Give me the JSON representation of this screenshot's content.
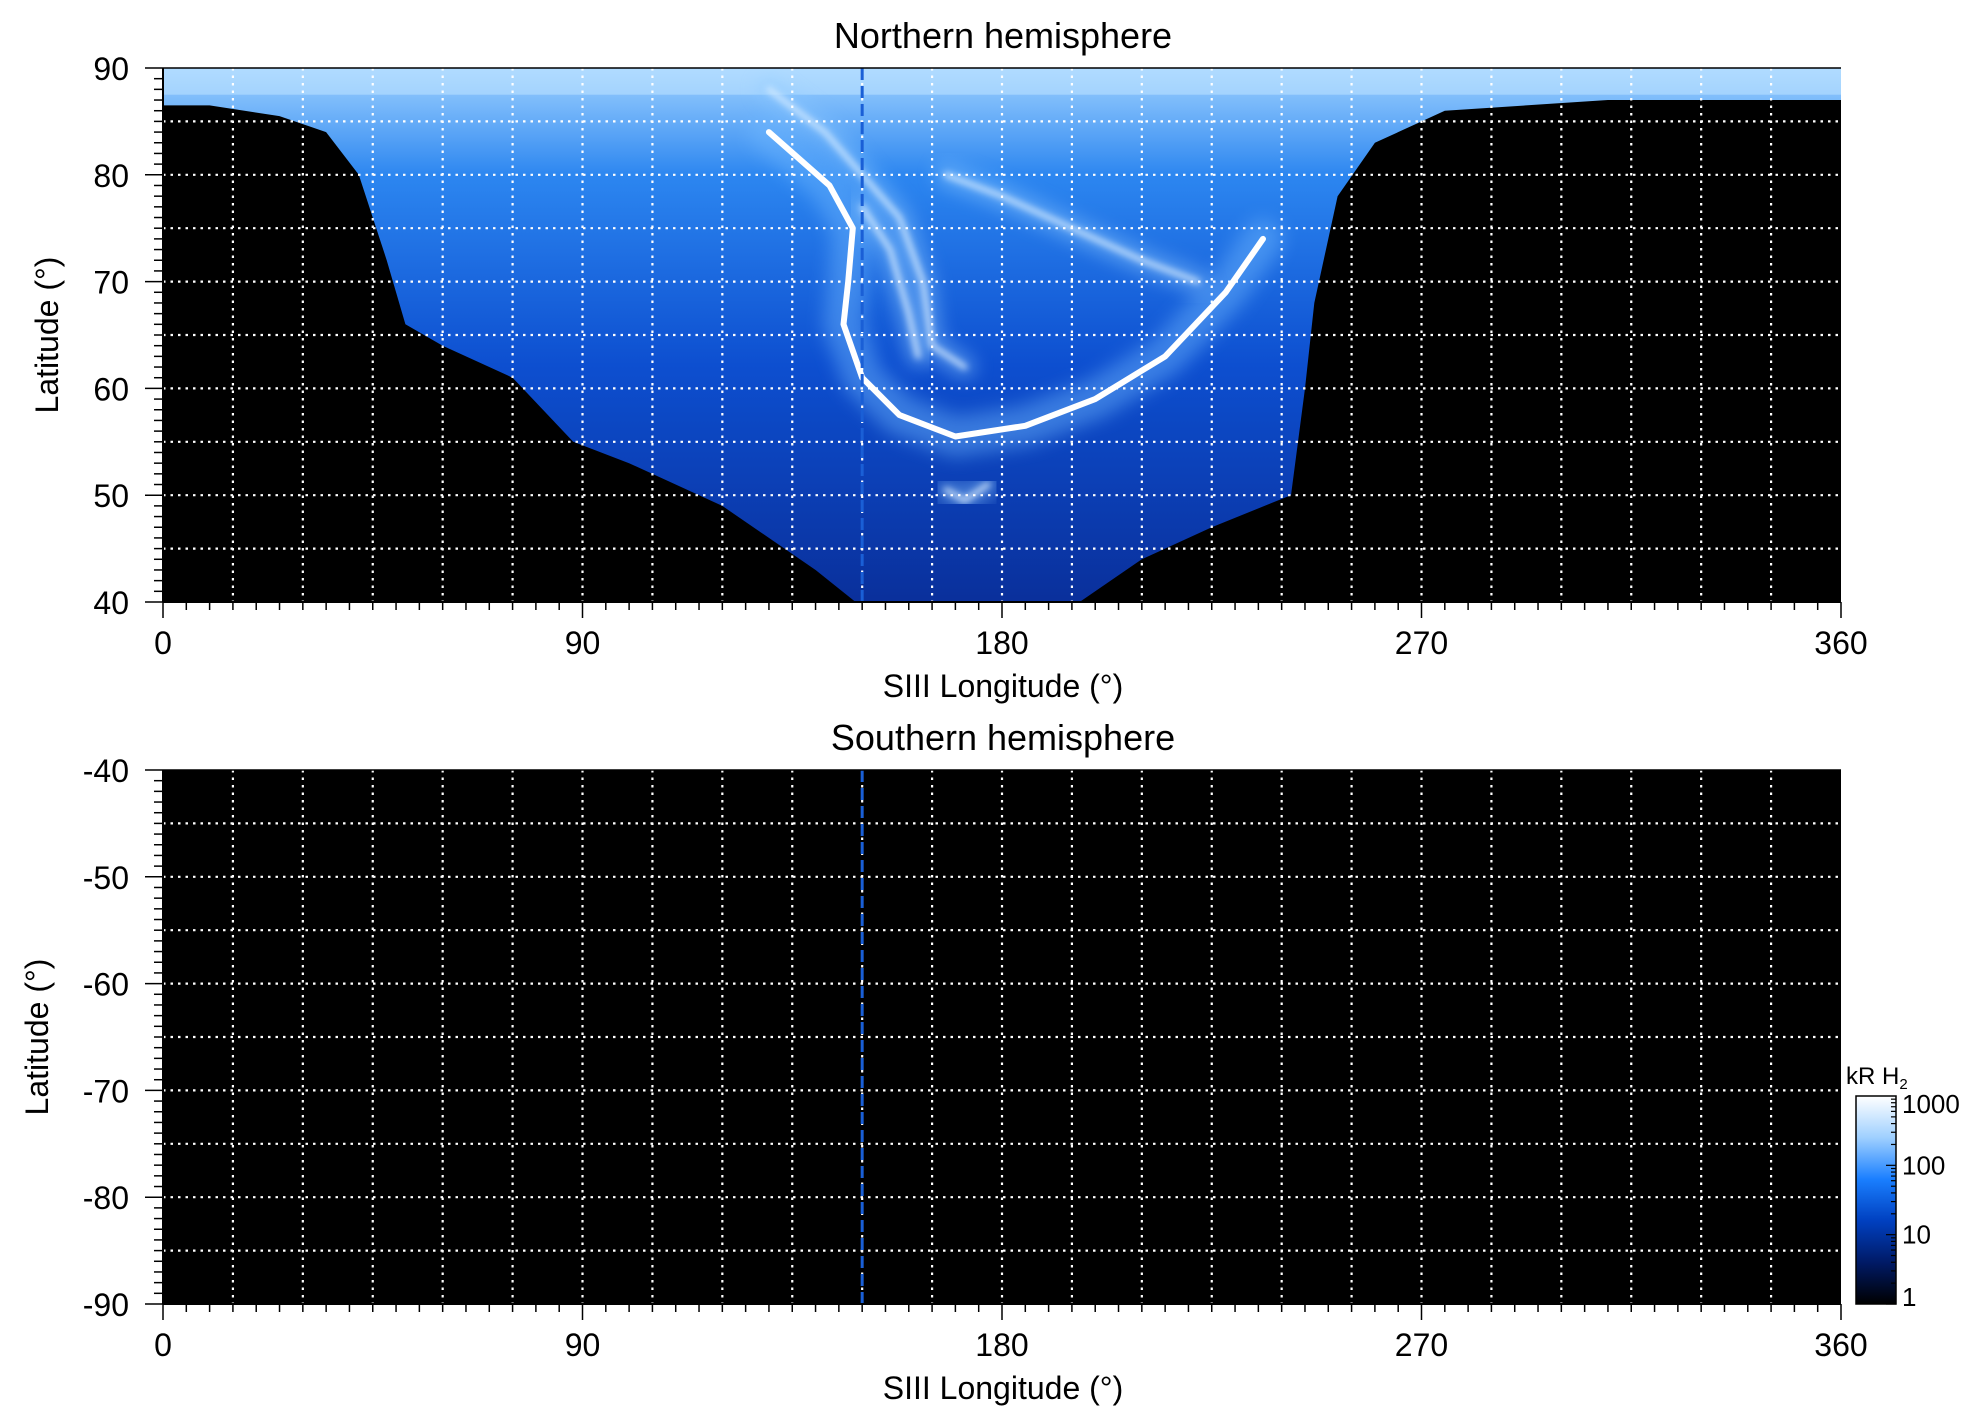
{
  "chart_data": [
    {
      "type": "heatmap",
      "title": "Northern hemisphere",
      "xlabel": "SIII Longitude (°)",
      "ylabel": "Latitude (°)",
      "xlim": [
        0,
        360
      ],
      "ylim": [
        40,
        90
      ],
      "xticks": [
        0,
        90,
        180,
        270,
        360
      ],
      "xtick_labels": [
        "0",
        "90",
        "180",
        "270",
        "360"
      ],
      "yticks": [
        40,
        50,
        60,
        70,
        80,
        90
      ],
      "ytick_labels": [
        "40",
        "50",
        "60",
        "70",
        "80",
        "90"
      ],
      "grid": true,
      "grid_spacing": {
        "longitude": 15,
        "latitude": 5
      },
      "marker_longitude": 150,
      "observed_region_lower_boundary": [
        {
          "lon": 0,
          "lat": 86.5
        },
        {
          "lon": 10,
          "lat": 86.5
        },
        {
          "lon": 25,
          "lat": 85.5
        },
        {
          "lon": 35,
          "lat": 84
        },
        {
          "lon": 42,
          "lat": 80
        },
        {
          "lon": 48,
          "lat": 72
        },
        {
          "lon": 52,
          "lat": 66
        },
        {
          "lon": 60,
          "lat": 64
        },
        {
          "lon": 75,
          "lat": 61
        },
        {
          "lon": 88,
          "lat": 55
        },
        {
          "lon": 100,
          "lat": 53
        },
        {
          "lon": 120,
          "lat": 49
        },
        {
          "lon": 140,
          "lat": 43
        },
        {
          "lon": 150,
          "lat": 39.5
        },
        {
          "lon": 195,
          "lat": 39.5
        },
        {
          "lon": 210,
          "lat": 44
        },
        {
          "lon": 225,
          "lat": 47
        },
        {
          "lon": 242,
          "lat": 50
        },
        {
          "lon": 245,
          "lat": 60
        },
        {
          "lon": 247,
          "lat": 68
        },
        {
          "lon": 252,
          "lat": 78
        },
        {
          "lon": 260,
          "lat": 83
        },
        {
          "lon": 275,
          "lat": 86
        },
        {
          "lon": 310,
          "lat": 87
        },
        {
          "lon": 360,
          "lat": 87
        }
      ],
      "main_oval": [
        {
          "lon": 130,
          "lat": 84
        },
        {
          "lon": 143,
          "lat": 79
        },
        {
          "lon": 148,
          "lat": 75
        },
        {
          "lon": 147,
          "lat": 70
        },
        {
          "lon": 146,
          "lat": 66
        },
        {
          "lon": 150,
          "lat": 61
        },
        {
          "lon": 158,
          "lat": 57.5
        },
        {
          "lon": 170,
          "lat": 55.5
        },
        {
          "lon": 185,
          "lat": 56.5
        },
        {
          "lon": 200,
          "lat": 59
        },
        {
          "lon": 215,
          "lat": 63
        },
        {
          "lon": 228,
          "lat": 69
        },
        {
          "lon": 236,
          "lat": 74
        }
      ],
      "bright_arcs": [
        [
          {
            "lon": 130,
            "lat": 88
          },
          {
            "lon": 142,
            "lat": 84
          },
          {
            "lon": 150,
            "lat": 80
          },
          {
            "lon": 158,
            "lat": 76
          },
          {
            "lon": 163,
            "lat": 70
          },
          {
            "lon": 165,
            "lat": 64
          },
          {
            "lon": 172,
            "lat": 62
          }
        ],
        [
          {
            "lon": 168,
            "lat": 80
          },
          {
            "lon": 180,
            "lat": 78
          },
          {
            "lon": 195,
            "lat": 75
          },
          {
            "lon": 210,
            "lat": 72
          },
          {
            "lon": 222,
            "lat": 70
          }
        ],
        [
          {
            "lon": 150,
            "lat": 77
          },
          {
            "lon": 156,
            "lat": 73
          },
          {
            "lon": 160,
            "lat": 67
          },
          {
            "lon": 162,
            "lat": 63
          }
        ],
        [
          {
            "lon": 168,
            "lat": 50.5
          },
          {
            "lon": 172,
            "lat": 49.5
          },
          {
            "lon": 177,
            "lat": 51
          }
        ]
      ]
    },
    {
      "type": "heatmap",
      "title": "Southern hemisphere",
      "xlabel": "SIII Longitude (°)",
      "ylabel": "Latitude (°)",
      "xlim": [
        0,
        360
      ],
      "ylim": [
        -90,
        -40
      ],
      "xticks": [
        0,
        90,
        180,
        270,
        360
      ],
      "xtick_labels": [
        "0",
        "90",
        "180",
        "270",
        "360"
      ],
      "yticks": [
        -90,
        -80,
        -70,
        -60,
        -50,
        -40
      ],
      "ytick_labels": [
        "-90",
        "-80",
        "-70",
        "-60",
        "-50",
        "-40"
      ],
      "grid": true,
      "grid_spacing": {
        "longitude": 15,
        "latitude": 5
      },
      "marker_longitude": 150
    }
  ],
  "colorbar": {
    "scale": "log",
    "range": [
      1,
      1000
    ],
    "ticks": [
      1,
      10,
      100,
      1000
    ],
    "tick_labels": [
      "1",
      "10",
      "100",
      "1000"
    ],
    "unit_label": "kR H",
    "unit_subscript": "2",
    "colors": [
      "#000000",
      "#001a66",
      "#0040c0",
      "#1a7fff",
      "#9fd0ff",
      "#ffffff"
    ]
  },
  "colors": {
    "marker_line": "#1a5fd6",
    "grid": "#ffffff",
    "background": "#000000"
  }
}
